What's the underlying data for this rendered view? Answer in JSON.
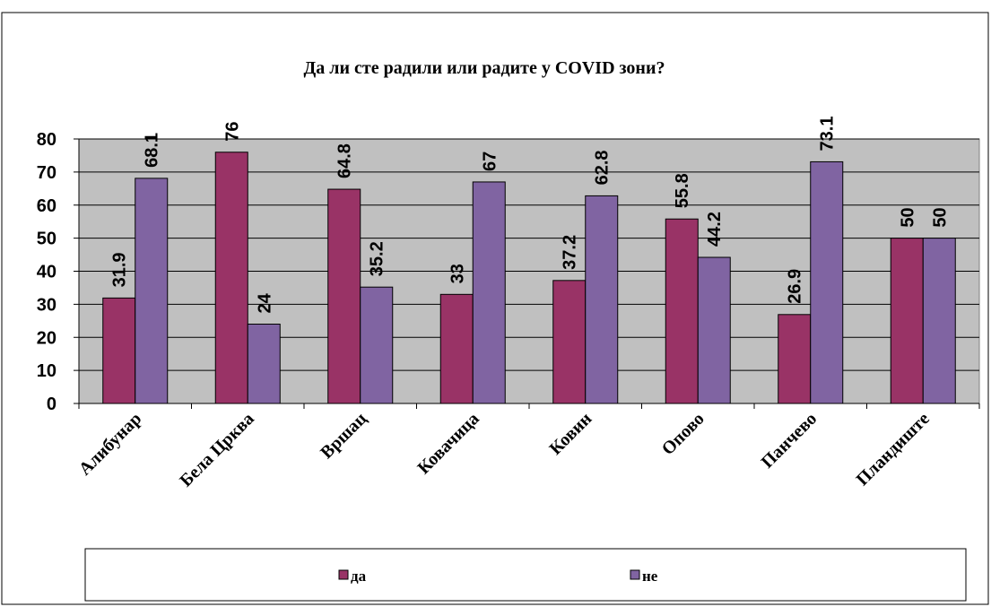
{
  "chart_data": {
    "type": "bar",
    "title": "Да ли сте радили или радите у COVID зони?",
    "categories": [
      "Алибунар",
      "Бела Црква",
      "Вршац",
      "Ковачица",
      "Ковин",
      "Опово",
      "Панчево",
      "Пландиште"
    ],
    "series": [
      {
        "name": "да",
        "color": "#993366",
        "values": [
          31.9,
          76,
          64.8,
          33,
          37.2,
          55.8,
          26.9,
          50
        ]
      },
      {
        "name": "не",
        "color": "#8064a2",
        "values": [
          68.1,
          24,
          35.2,
          67,
          62.8,
          44.2,
          73.1,
          50
        ]
      }
    ],
    "ylim": [
      0,
      80
    ],
    "yticks": [
      0,
      10,
      20,
      30,
      40,
      50,
      60,
      70,
      80
    ],
    "grid": true,
    "legend": "bottom"
  }
}
